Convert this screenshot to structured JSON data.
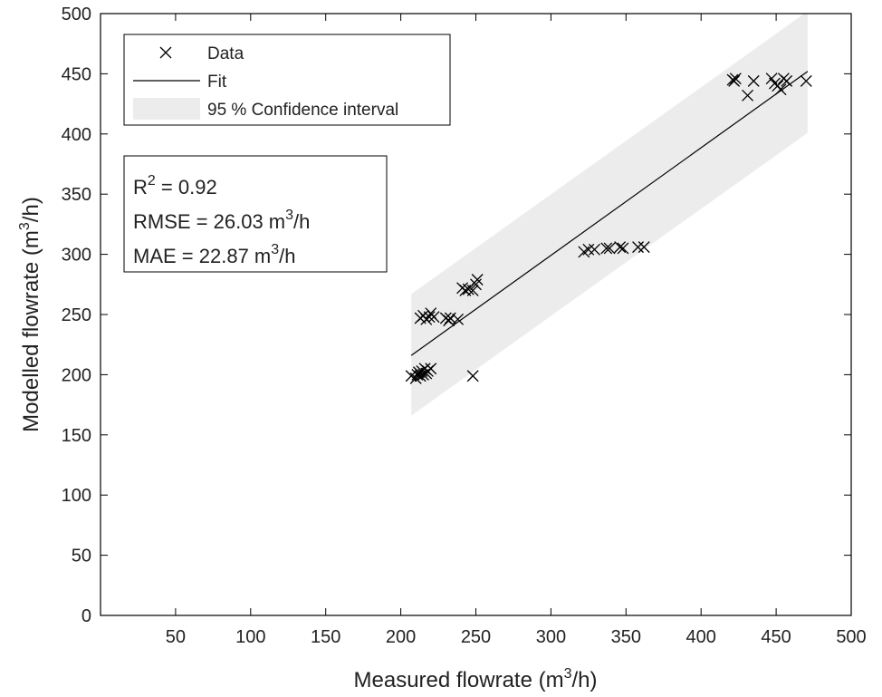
{
  "chart_data": {
    "type": "scatter",
    "xlabel": [
      "Measured flowrate (m",
      "3",
      "/h)"
    ],
    "ylabel": [
      "Modelled flowrate (m",
      "3",
      "/h)"
    ],
    "xlim": [
      0,
      500
    ],
    "xticks": [
      50,
      100,
      150,
      200,
      250,
      300,
      350,
      400,
      450,
      500
    ],
    "ylim": [
      0,
      500
    ],
    "yticks": [
      0,
      50,
      100,
      150,
      200,
      250,
      300,
      350,
      400,
      450,
      500
    ],
    "grid": false,
    "legend": "upper left",
    "series": [
      {
        "name": "Data",
        "type": "scatter",
        "marker": "x",
        "color": "#000000",
        "x": [
          207,
          210,
          211,
          212,
          213,
          214,
          215,
          216,
          217,
          218,
          220,
          213,
          215,
          217,
          219,
          220,
          222,
          230,
          232,
          233,
          238,
          241,
          243,
          245,
          248,
          250,
          251,
          248,
          322,
          325,
          329,
          337,
          339,
          346,
          348,
          358,
          362,
          421,
          422,
          423,
          431,
          435,
          447,
          449,
          451,
          453,
          455,
          457,
          470
        ],
        "values": [
          199,
          197,
          200,
          202,
          199,
          203,
          200,
          205,
          201,
          203,
          205,
          247,
          249,
          246,
          248,
          251,
          248,
          247,
          245,
          247,
          246,
          272,
          270,
          271,
          270,
          275,
          279,
          199,
          302,
          304,
          304,
          305,
          305,
          306,
          305,
          306,
          306,
          445,
          444,
          446,
          432,
          444,
          446,
          442,
          440,
          437,
          446,
          444,
          444
        ]
      },
      {
        "name": "Fit",
        "type": "line",
        "color": "#000000",
        "x": [
          207,
          471
        ],
        "values": [
          216,
          452
        ]
      },
      {
        "name": "95 % Confidence interval",
        "type": "band",
        "color": "#ececec",
        "x": [
          207,
          471
        ],
        "lower": [
          166,
          401
        ],
        "upper": [
          267,
          502
        ]
      }
    ],
    "annotations": [
      [
        "R",
        "2",
        " = 0.92"
      ],
      [
        "RMSE = 26.03 m",
        "3",
        "/h"
      ],
      [
        "MAE = 22.87 m",
        "3",
        "/h"
      ]
    ]
  }
}
